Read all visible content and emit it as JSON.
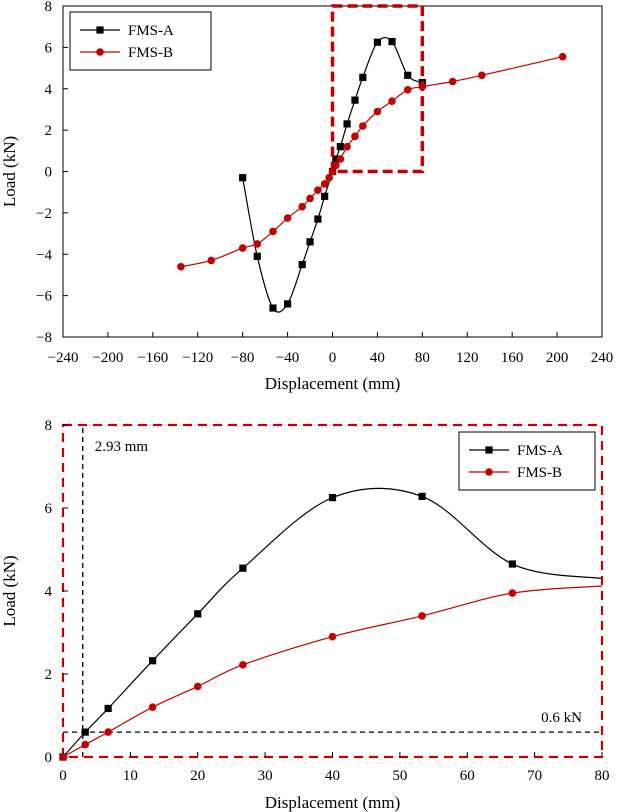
{
  "chart_data": [
    {
      "type": "scatter",
      "xlabel": "Displacement (mm)",
      "ylabel": "Load (kN)",
      "xlim": [
        -240,
        240
      ],
      "ylim": [
        -8,
        8
      ],
      "xticks": [
        -240,
        -200,
        -160,
        -120,
        -80,
        -40,
        0,
        40,
        80,
        120,
        160,
        200,
        240
      ],
      "xtick_labels": [
        "−240",
        "−200",
        "−160",
        "−120",
        "−80",
        "−40",
        "0",
        "40",
        "80",
        "120",
        "160",
        "200",
        "240"
      ],
      "yticks": [
        -8,
        -6,
        -4,
        -2,
        0,
        2,
        4,
        6,
        8
      ],
      "ytick_labels": [
        "−8",
        "−6",
        "−4",
        "−2",
        "0",
        "2",
        "4",
        "6",
        "8"
      ],
      "grid": false,
      "legend_position": "top-left",
      "series": [
        {
          "name": "FMS-A",
          "color": "#000000",
          "marker": "square",
          "x": [
            -80,
            -67,
            -53,
            -40,
            -27,
            -20,
            -13,
            -7,
            0,
            3,
            7,
            13,
            20,
            27,
            40,
            53,
            67,
            80
          ],
          "y": [
            -0.3,
            -4.1,
            -6.6,
            -6.4,
            -4.5,
            -3.4,
            -2.3,
            -1.2,
            0,
            0.6,
            1.2,
            2.3,
            3.45,
            4.55,
            6.25,
            6.28,
            4.65,
            4.3
          ]
        },
        {
          "name": "FMS-B",
          "color": "#c00000",
          "marker": "circle",
          "x": [
            -135,
            -108,
            -80,
            -67,
            -53,
            -40,
            -27,
            -20,
            -13,
            -7,
            -3,
            0,
            3,
            7,
            13,
            20,
            27,
            40,
            53,
            67,
            80,
            107,
            133,
            205
          ],
          "y": [
            -4.6,
            -4.3,
            -3.7,
            -3.5,
            -2.9,
            -2.25,
            -1.7,
            -1.3,
            -0.9,
            -0.6,
            -0.3,
            0,
            0.3,
            0.6,
            1.2,
            1.7,
            2.2,
            2.9,
            3.4,
            3.95,
            4.1,
            4.35,
            4.65,
            5.55
          ]
        }
      ],
      "highlight_box": {
        "x": [
          0,
          80
        ],
        "y": [
          0,
          8
        ],
        "color": "#c00000"
      }
    },
    {
      "type": "scatter",
      "xlabel": "Displacement (mm)",
      "ylabel": "Load (kN)",
      "xlim": [
        0,
        80
      ],
      "ylim": [
        0,
        8
      ],
      "xticks": [
        0,
        10,
        20,
        30,
        40,
        50,
        60,
        70,
        80
      ],
      "xtick_labels": [
        "0",
        "10",
        "20",
        "30",
        "40",
        "50",
        "60",
        "70",
        "80"
      ],
      "yticks": [
        0,
        2,
        4,
        6,
        8
      ],
      "ytick_labels": [
        "0",
        "2",
        "4",
        "6",
        "8"
      ],
      "grid": false,
      "legend_position": "top-right",
      "series": [
        {
          "name": "FMS-A",
          "color": "#000000",
          "marker": "square",
          "x": [
            0,
            3.3,
            6.7,
            13.3,
            20,
            26.7,
            40,
            53.3,
            66.7
          ],
          "y": [
            0,
            0.6,
            1.17,
            2.32,
            3.45,
            4.55,
            6.25,
            6.28,
            4.65
          ],
          "curve_tail": {
            "x": [
              80
            ],
            "y": [
              4.3
            ]
          }
        },
        {
          "name": "FMS-B",
          "color": "#c00000",
          "marker": "circle",
          "x": [
            0,
            3.3,
            6.7,
            13.3,
            20,
            26.7,
            40,
            53.3,
            66.7
          ],
          "y": [
            0,
            0.3,
            0.6,
            1.2,
            1.7,
            2.22,
            2.9,
            3.4,
            3.95
          ],
          "curve_tail": {
            "x": [
              80
            ],
            "y": [
              4.12
            ]
          }
        }
      ],
      "annotations": [
        {
          "text": "2.93 mm",
          "kind": "vertical",
          "value": 2.93
        },
        {
          "text": "0.6 kN",
          "kind": "horizontal",
          "value": 0.6
        }
      ],
      "frame_color": "#c00000"
    }
  ]
}
